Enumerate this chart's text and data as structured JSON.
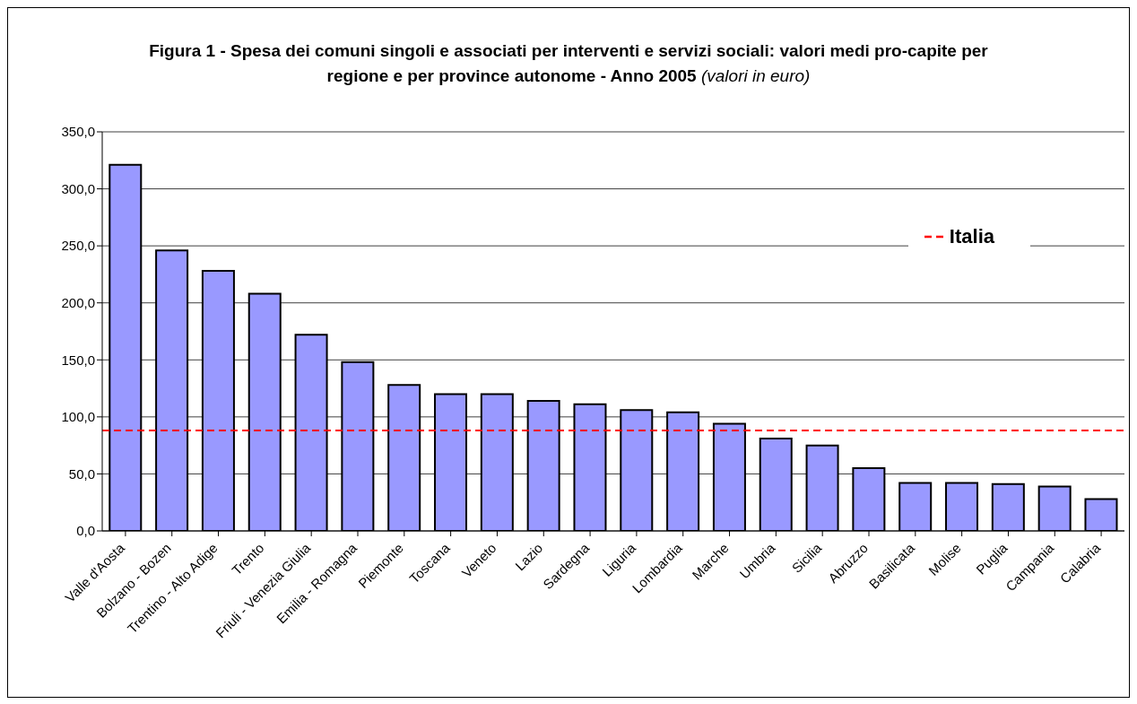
{
  "chart_data": {
    "type": "bar",
    "title": "Figura 1 - Spesa dei comuni singoli e associati per interventi e servizi sociali: valori medi pro-capite per regione e per province autonome - Anno 2005",
    "subtitle": "(valori in euro)",
    "categories": [
      "Valle d'Aosta",
      "Bolzano - Bozen",
      "Trentino - Alto Adige",
      "Trento",
      "Friuli - Venezia Giulia",
      "Emilia - Romagna",
      "Piemonte",
      "Toscana",
      "Veneto",
      "Lazio",
      "Sardegna",
      "Liguria",
      "Lombardia",
      "Marche",
      "Umbria",
      "Sicilia",
      "Abruzzo",
      "Basilicata",
      "Molise",
      "Puglia",
      "Campania",
      "Calabria"
    ],
    "values": [
      321,
      246,
      228,
      208,
      172,
      148,
      128,
      120,
      120,
      114,
      111,
      106,
      104,
      94,
      81,
      75,
      55,
      42,
      42,
      41,
      39,
      28
    ],
    "color": "#9999ff",
    "ylim": [
      0,
      350
    ],
    "yticks": [
      {
        "value": 0,
        "label": "0,0"
      },
      {
        "value": 50,
        "label": "50,0"
      },
      {
        "value": 100,
        "label": "100,0"
      },
      {
        "value": 150,
        "label": "150,0"
      },
      {
        "value": 200,
        "label": "200,0"
      },
      {
        "value": 250,
        "label": "250,0"
      },
      {
        "value": 300,
        "label": "300,0"
      },
      {
        "value": 350,
        "label": "350,0"
      }
    ],
    "grid": "y",
    "ref_lines": [
      {
        "axis": "y",
        "value": 88,
        "label": "Italia",
        "color": "#ff0000",
        "line_style": "dashed"
      }
    ],
    "legend": "top right"
  }
}
